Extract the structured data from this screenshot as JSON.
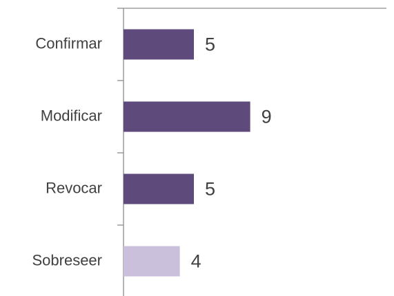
{
  "chart_data": {
    "type": "bar",
    "orientation": "horizontal",
    "categories": [
      "Confirmar",
      "Modificar",
      "Revocar",
      "Sobreseer"
    ],
    "values": [
      5,
      9,
      5,
      4
    ],
    "colors": [
      "#5e4a7b",
      "#5e4a7b",
      "#5e4a7b",
      "#cbc0dc"
    ]
  }
}
